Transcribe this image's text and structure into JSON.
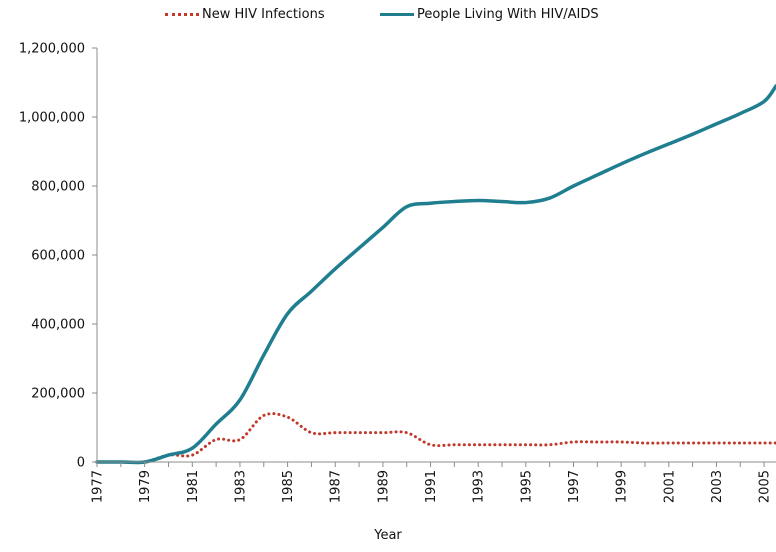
{
  "chart_data": {
    "type": "line",
    "title": "",
    "xlabel": "Year",
    "ylabel": "",
    "x": [
      1977,
      1978,
      1979,
      1980,
      1981,
      1982,
      1983,
      1984,
      1985,
      1986,
      1987,
      1988,
      1989,
      1990,
      1991,
      1992,
      1993,
      1994,
      1995,
      1996,
      1997,
      1998,
      1999,
      2000,
      2001,
      2002,
      2003,
      2004,
      2005,
      2005.5
    ],
    "xlim": [
      1977,
      2005.5
    ],
    "ylim": [
      0,
      1200000
    ],
    "x_tick_labels": [
      "1977",
      "1979",
      "1981",
      "1983",
      "1985",
      "1987",
      "1989",
      "1991",
      "1993",
      "1995",
      "1997",
      "1999",
      "2001",
      "2003",
      "2005"
    ],
    "y_tick_labels": [
      "0",
      "200,000",
      "400,000",
      "600,000",
      "800,000",
      "1,000,000",
      "1,200,000"
    ],
    "legend_position": "top-center",
    "grid": false,
    "series": [
      {
        "name": "New HIV Infections",
        "color": "#c0392b",
        "style": "dotted",
        "values": [
          0,
          0,
          0,
          20000,
          20000,
          65000,
          65000,
          135000,
          130000,
          85000,
          85000,
          85000,
          85000,
          85000,
          50000,
          50000,
          50000,
          50000,
          50000,
          50000,
          58000,
          58000,
          58000,
          55000,
          55000,
          55000,
          55000,
          55000,
          55000,
          55000
        ]
      },
      {
        "name": "People Living With HIV/AIDS",
        "color": "#1f7e8f",
        "style": "solid",
        "values": [
          0,
          0,
          0,
          20000,
          40000,
          110000,
          180000,
          310000,
          430000,
          495000,
          560000,
          620000,
          680000,
          740000,
          750000,
          755000,
          758000,
          755000,
          752000,
          765000,
          800000,
          832000,
          864000,
          894000,
          922000,
          950000,
          980000,
          1010000,
          1045000,
          1090000
        ]
      }
    ]
  }
}
